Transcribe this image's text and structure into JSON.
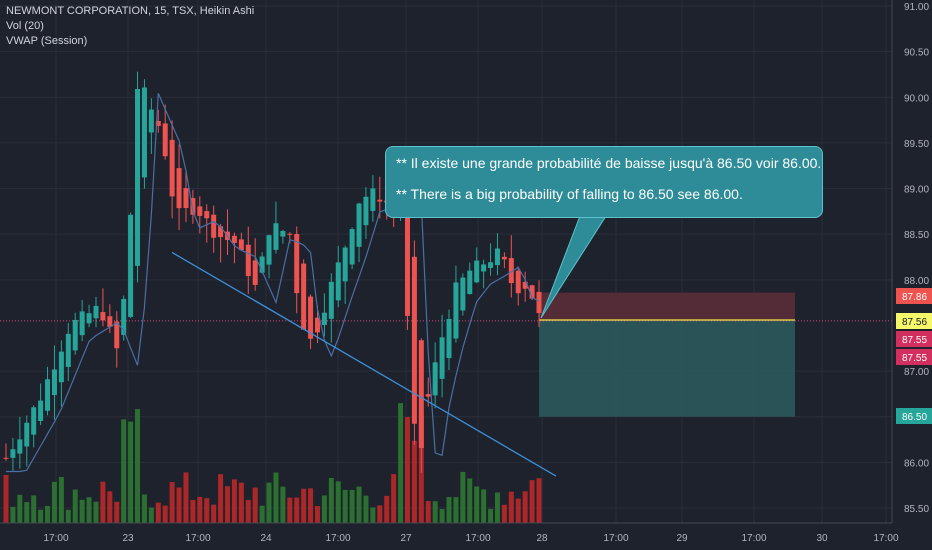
{
  "legend": {
    "symbol_line": "NEWMONT CORPORATION, 15, TSX, Heikin Ashi",
    "volume_line": "Vol (20)",
    "vwap_line": "VWAP (Session)"
  },
  "callout": {
    "line1": "** Il existe une grande probabilité de baisse jusqu'à 86.50 voir 86.00.",
    "line2": "** There is a big probability of falling to 86.50 see 86.00."
  },
  "colors": {
    "background": "#1e222d",
    "up": "#26a69a",
    "down": "#ef5350",
    "vol_up": "#2e7d32",
    "vol_down": "#c62828",
    "vwap": "#4a6fa5",
    "trendline": "#3d8fd6",
    "profit_zone": "#2b5c5f",
    "stop_zone": "#5a2e38",
    "current_price_line": "#f0e442",
    "callout_bg": "#2d8c97"
  },
  "chart_data": {
    "type": "candlestick",
    "subtype": "heikin-ashi",
    "symbol": "NEWMONT CORPORATION",
    "interval": "15",
    "exchange": "TSX",
    "price_axis": {
      "ticks": [
        "91.00",
        "90.50",
        "90.00",
        "89.50",
        "89.00",
        "88.50",
        "88.00",
        "87.00",
        "86.50",
        "86.00",
        "85.50"
      ],
      "range": [
        85.4,
        91.1
      ]
    },
    "time_axis": {
      "ticks": [
        "17:00",
        "23",
        "17:00",
        "24",
        "17:00",
        "27",
        "17:00",
        "28",
        "17:00",
        "29",
        "17:00",
        "30",
        "17:00"
      ]
    },
    "price_labels": [
      {
        "value": "87.86",
        "color": "#ef5350",
        "text_color": "#ffffff"
      },
      {
        "value": "87.56",
        "color": "#f7f76a",
        "text_color": "#131722"
      },
      {
        "value": "87.55",
        "color": "#d32f5e",
        "text_color": "#ffffff"
      },
      {
        "value": "87.55",
        "color": "#d32f5e",
        "text_color": "#ffffff"
      },
      {
        "value": "86.50",
        "color": "#26a69a",
        "text_color": "#ffffff"
      }
    ],
    "position_tool": {
      "entry": 87.56,
      "stop": 87.86,
      "target": 86.5
    },
    "anchors": [
      {
        "day": "22",
        "first": 85.7,
        "last": 87.0
      },
      {
        "day": "23",
        "first": 87.1,
        "last": 89.3
      },
      {
        "day": "24",
        "first": 88.5,
        "last": 88.9
      },
      {
        "day": "27",
        "first": 89.2,
        "last": 88.2
      },
      {
        "day": "28",
        "first": 88.2,
        "last": 87.6
      }
    ]
  }
}
